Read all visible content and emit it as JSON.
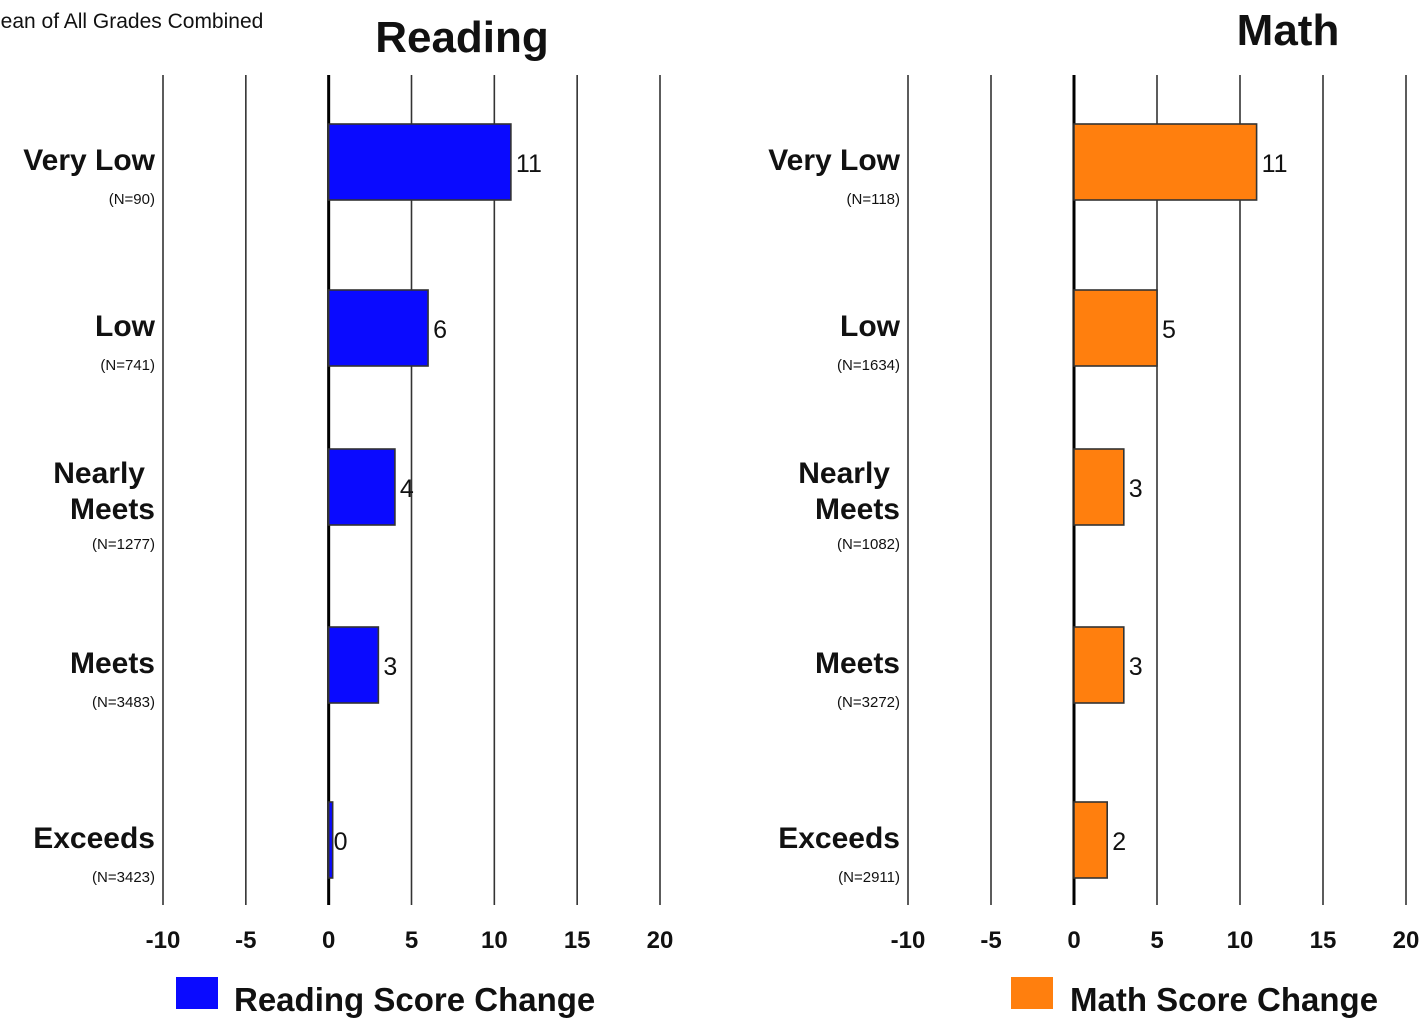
{
  "header": {
    "subtitle": "lean of All Grades Combined"
  },
  "chart_data": [
    {
      "type": "bar",
      "orientation": "horizontal",
      "title": "Reading",
      "categories": [
        "Very Low",
        "Low",
        "Nearly Meets",
        "Meets",
        "Exceeds"
      ],
      "category_n": [
        "(N=90)",
        "(N=741)",
        "(N=1277)",
        "(N=3483)",
        "(N=3423)"
      ],
      "values": [
        11,
        6,
        4,
        3,
        0
      ],
      "value_labels": [
        "11",
        "6",
        "4",
        "3",
        "0"
      ],
      "xlim": [
        -10,
        20
      ],
      "xticks": [
        -10,
        -5,
        0,
        5,
        10,
        15,
        20
      ],
      "xtick_labels": [
        "-10",
        "-5",
        "0",
        "5",
        "10",
        "15",
        "20"
      ],
      "grid": true,
      "color": "#0a0aff",
      "legend": {
        "label": "Reading Score Change",
        "position": "bottom"
      }
    },
    {
      "type": "bar",
      "orientation": "horizontal",
      "title": "Math",
      "categories": [
        "Very Low",
        "Low",
        "Nearly Meets",
        "Meets",
        "Exceeds"
      ],
      "category_n": [
        "(N=118)",
        "(N=1634)",
        "(N=1082)",
        "(N=3272)",
        "(N=2911)"
      ],
      "values": [
        11,
        5,
        3,
        3,
        2
      ],
      "value_labels": [
        "11",
        "5",
        "3",
        "3",
        "2"
      ],
      "xlim": [
        -10,
        20
      ],
      "xticks": [
        -10,
        -5,
        0,
        5,
        10,
        15,
        20
      ],
      "xtick_labels": [
        "-10",
        "-5",
        "0",
        "5",
        "10",
        "15",
        "20"
      ],
      "grid": true,
      "color": "#ff7f0e",
      "legend": {
        "label": "Math Score Change",
        "position": "bottom"
      }
    }
  ]
}
